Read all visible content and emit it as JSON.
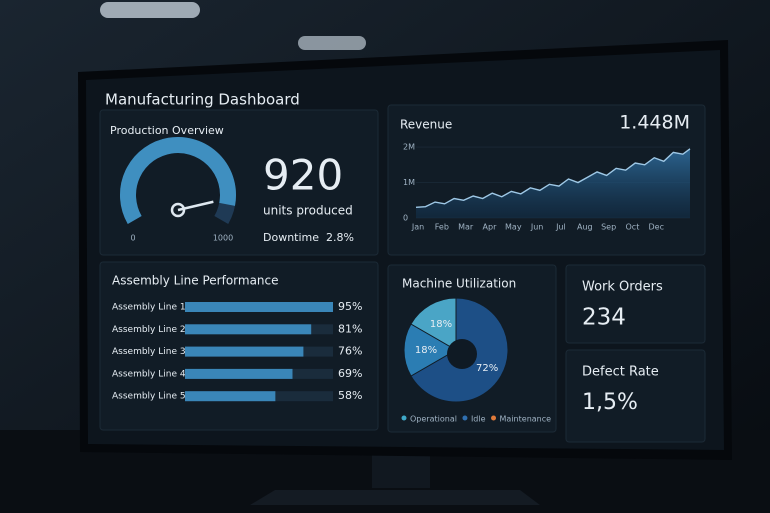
{
  "title": "Manufacturing Dashboard",
  "production": {
    "title": "Production Overview",
    "value": 920,
    "min": 0,
    "max": 1000,
    "unit": "units produced",
    "downtime_label": "Downtime",
    "downtime": "2.8%"
  },
  "revenue": {
    "type": "line",
    "title": "Revenue",
    "total": "1.448M",
    "color": "#9ec8e6",
    "x": [
      0,
      0.4,
      0.8,
      1.2,
      1.6,
      2,
      2.4,
      2.8,
      3.2,
      3.6,
      4,
      4.4,
      4.8,
      5.2,
      5.6,
      6,
      6.4,
      6.8,
      7.2,
      7.6,
      8,
      8.4,
      8.8,
      9.2,
      9.6,
      10,
      10.4,
      10.8,
      11.2,
      11.5
    ],
    "values": [
      0.3,
      0.32,
      0.45,
      0.4,
      0.55,
      0.5,
      0.62,
      0.55,
      0.7,
      0.6,
      0.75,
      0.68,
      0.85,
      0.78,
      0.95,
      0.9,
      1.1,
      1.0,
      1.15,
      1.3,
      1.2,
      1.4,
      1.35,
      1.55,
      1.5,
      1.7,
      1.6,
      1.85,
      1.8,
      1.95
    ],
    "xlim": [
      0,
      11.5
    ],
    "xticks": [
      {
        "value": 0,
        "label": "Jan"
      },
      {
        "value": 1,
        "label": "Feb"
      },
      {
        "value": 2,
        "label": "Mar"
      },
      {
        "value": 3,
        "label": "Apr"
      },
      {
        "value": 4,
        "label": "May"
      },
      {
        "value": 5,
        "label": "Jun"
      },
      {
        "value": 6,
        "label": "Jul"
      },
      {
        "value": 7,
        "label": "Aug"
      },
      {
        "value": 8,
        "label": "Sep"
      },
      {
        "value": 9,
        "label": "Oct"
      },
      {
        "value": 10,
        "label": "Dec"
      }
    ],
    "ylim": [
      0,
      2.2
    ],
    "yticks": [
      0,
      {
        "value": 1,
        "label": "1M"
      },
      {
        "value": 2,
        "label": "2M"
      }
    ]
  },
  "assembly": {
    "type": "bar",
    "title": "Assembly Line Performance",
    "color": "#3a86b8",
    "categories": [
      "Assembly Line 1",
      "Assembly Line 2",
      "Assembly Line 3",
      "Assembly Line 4",
      "Assembly Line 5"
    ],
    "values": [
      95,
      81,
      76,
      69,
      58
    ],
    "value_labels": [
      "95%",
      "81%",
      "76%",
      "69%",
      "58%"
    ]
  },
  "utilization": {
    "type": "pie",
    "title": "Machine Utilization",
    "values": [
      72,
      18,
      18
    ],
    "value_labels": [
      "72%",
      "18%",
      "18%"
    ],
    "colors": [
      "#1d4f86",
      "#2b7db3",
      "#4aa5c6"
    ],
    "legend": [
      {
        "name": "Operational",
        "color": "#3fa9c9"
      },
      {
        "name": "Idle",
        "color": "#2f6fb0"
      },
      {
        "name": "Maintenance",
        "color": "#e07a3a"
      }
    ]
  },
  "work_orders": {
    "title": "Work Orders",
    "value": 234
  },
  "defect_rate": {
    "title": "Defect Rate",
    "value": "1,5%"
  }
}
